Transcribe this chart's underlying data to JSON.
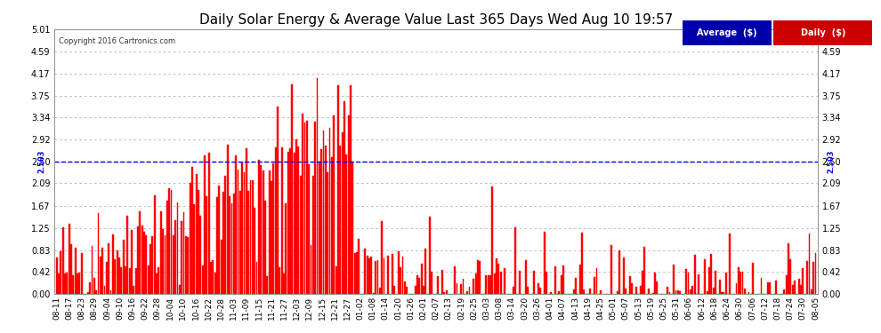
{
  "title": "Daily Solar Energy & Average Value Last 365 Days Wed Aug 10 19:57",
  "copyright": "Copyright 2016 Cartronics.com",
  "average_value": 2.503,
  "ymax": 5.01,
  "ymin": 0.0,
  "yticks": [
    0.0,
    0.42,
    0.83,
    1.25,
    1.67,
    2.09,
    2.5,
    2.92,
    3.34,
    3.75,
    4.17,
    4.59,
    5.01
  ],
  "bar_color": "#ff0000",
  "avg_line_color": "#0000ff",
  "background_color": "#ffffff",
  "grid_color": "#aaaaaa",
  "title_color": "#000000",
  "num_bars": 365,
  "xtick_labels": [
    "08-11",
    "08-17",
    "08-23",
    "08-29",
    "09-04",
    "09-10",
    "09-16",
    "09-22",
    "09-28",
    "10-04",
    "10-10",
    "10-16",
    "10-22",
    "10-28",
    "11-03",
    "11-09",
    "11-15",
    "11-21",
    "11-27",
    "12-03",
    "12-09",
    "12-15",
    "12-21",
    "12-27",
    "01-02",
    "01-08",
    "01-14",
    "01-20",
    "01-26",
    "02-01",
    "02-07",
    "02-13",
    "02-19",
    "02-25",
    "03-03",
    "03-08",
    "03-14",
    "03-20",
    "03-26",
    "04-01",
    "04-07",
    "04-13",
    "04-19",
    "04-25",
    "05-01",
    "05-07",
    "05-13",
    "05-19",
    "05-25",
    "05-31",
    "06-06",
    "06-12",
    "06-18",
    "06-24",
    "06-30",
    "07-06",
    "07-12",
    "07-18",
    "07-24",
    "07-30",
    "08-05"
  ],
  "seed": 42
}
